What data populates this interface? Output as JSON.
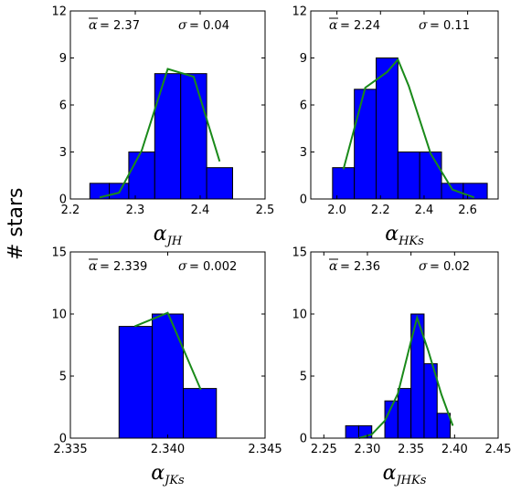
{
  "figure": {
    "ylabel": "# stars"
  },
  "chart_data": [
    {
      "type": "bar",
      "xlabel_base": "α",
      "xlabel_sub": "JH",
      "stats": {
        "mean_label": "α",
        "mean": "2.37",
        "sigma_label": "σ",
        "sigma": "0.04"
      },
      "xlim": [
        2.2,
        2.5
      ],
      "ylim": [
        0,
        12
      ],
      "xticks": [
        "2.2",
        "2.3",
        "2.4",
        "2.5"
      ],
      "xtick_values": [
        2.2,
        2.3,
        2.4,
        2.5
      ],
      "yticks": [
        "0",
        "3",
        "6",
        "9",
        "12"
      ],
      "ytick_values": [
        0,
        3,
        6,
        9,
        12
      ],
      "bins": [
        {
          "x0": 2.23,
          "x1": 2.26,
          "count": 1
        },
        {
          "x0": 2.26,
          "x1": 2.29,
          "count": 1
        },
        {
          "x0": 2.29,
          "x1": 2.33,
          "count": 3
        },
        {
          "x0": 2.33,
          "x1": 2.37,
          "count": 8
        },
        {
          "x0": 2.37,
          "x1": 2.41,
          "count": 8
        },
        {
          "x0": 2.41,
          "x1": 2.45,
          "count": 2
        }
      ],
      "fit": {
        "x": [
          2.245,
          2.275,
          2.31,
          2.35,
          2.39,
          2.43
        ],
        "y": [
          0.1,
          0.4,
          3.1,
          8.3,
          7.8,
          2.4
        ]
      }
    },
    {
      "type": "bar",
      "xlabel_base": "α",
      "xlabel_sub": "HKs",
      "stats": {
        "mean_label": "α",
        "mean": "2.24",
        "sigma_label": "σ",
        "sigma": "0.11"
      },
      "xlim": [
        1.88,
        2.74
      ],
      "ylim": [
        0,
        12
      ],
      "xticks": [
        "2.0",
        "2.2",
        "2.4",
        "2.6"
      ],
      "xtick_values": [
        2.0,
        2.2,
        2.4,
        2.6
      ],
      "yticks": [
        "0",
        "3",
        "6",
        "9",
        "12"
      ],
      "ytick_values": [
        0,
        3,
        6,
        9,
        12
      ],
      "bins": [
        {
          "x0": 1.98,
          "x1": 2.08,
          "count": 2
        },
        {
          "x0": 2.08,
          "x1": 2.18,
          "count": 7
        },
        {
          "x0": 2.18,
          "x1": 2.28,
          "count": 9
        },
        {
          "x0": 2.28,
          "x1": 2.38,
          "count": 3
        },
        {
          "x0": 2.38,
          "x1": 2.48,
          "count": 3
        },
        {
          "x0": 2.48,
          "x1": 2.58,
          "count": 1
        },
        {
          "x0": 2.58,
          "x1": 2.69,
          "count": 1
        }
      ],
      "fit": {
        "x": [
          2.03,
          2.13,
          2.23,
          2.28,
          2.33,
          2.43,
          2.53,
          2.63
        ],
        "y": [
          1.9,
          7.1,
          8.1,
          8.9,
          7.2,
          2.9,
          0.6,
          0.1
        ]
      }
    },
    {
      "type": "bar",
      "xlabel_base": "α",
      "xlabel_sub": "JKs",
      "stats": {
        "mean_label": "α",
        "mean": "2.339",
        "sigma_label": "σ",
        "sigma": "0.002"
      },
      "xlim": [
        2.335,
        2.345
      ],
      "ylim": [
        0,
        15
      ],
      "xticks": [
        "2.335",
        "2.340",
        "2.345"
      ],
      "xtick_values": [
        2.335,
        2.34,
        2.345
      ],
      "yticks": [
        "0",
        "5",
        "10",
        "15"
      ],
      "ytick_values": [
        0,
        5,
        10,
        15
      ],
      "bins": [
        {
          "x0": 2.3375,
          "x1": 2.3392,
          "count": 9
        },
        {
          "x0": 2.3392,
          "x1": 2.3408,
          "count": 10
        },
        {
          "x0": 2.3408,
          "x1": 2.3425,
          "count": 4
        }
      ],
      "fit": {
        "x": [
          2.3383,
          2.34,
          2.3417
        ],
        "y": [
          9.0,
          10.1,
          3.9
        ]
      }
    },
    {
      "type": "bar",
      "xlabel_base": "α",
      "xlabel_sub": "JHKs",
      "stats": {
        "mean_label": "α",
        "mean": "2.36",
        "sigma_label": "σ",
        "sigma": "0.02"
      },
      "xlim": [
        2.235,
        2.45
      ],
      "ylim": [
        0,
        15
      ],
      "xticks": [
        "2.25",
        "2.30",
        "2.35",
        "2.40",
        "2.45"
      ],
      "xtick_values": [
        2.25,
        2.3,
        2.35,
        2.4,
        2.45
      ],
      "yticks": [
        "0",
        "5",
        "10",
        "15"
      ],
      "ytick_values": [
        0,
        5,
        10,
        15
      ],
      "bins": [
        {
          "x0": 2.275,
          "x1": 2.29,
          "count": 1
        },
        {
          "x0": 2.29,
          "x1": 2.305,
          "count": 1
        },
        {
          "x0": 2.305,
          "x1": 2.32,
          "count": 0
        },
        {
          "x0": 2.32,
          "x1": 2.335,
          "count": 3
        },
        {
          "x0": 2.335,
          "x1": 2.35,
          "count": 4
        },
        {
          "x0": 2.35,
          "x1": 2.365,
          "count": 10
        },
        {
          "x0": 2.365,
          "x1": 2.38,
          "count": 6
        },
        {
          "x0": 2.38,
          "x1": 2.395,
          "count": 2
        }
      ],
      "fit": {
        "x": [
          2.29,
          2.305,
          2.32,
          2.335,
          2.35,
          2.357,
          2.37,
          2.385,
          2.398
        ],
        "y": [
          0.0,
          0.3,
          1.4,
          3.6,
          7.8,
          9.7,
          7.0,
          3.5,
          1.0
        ]
      }
    }
  ]
}
